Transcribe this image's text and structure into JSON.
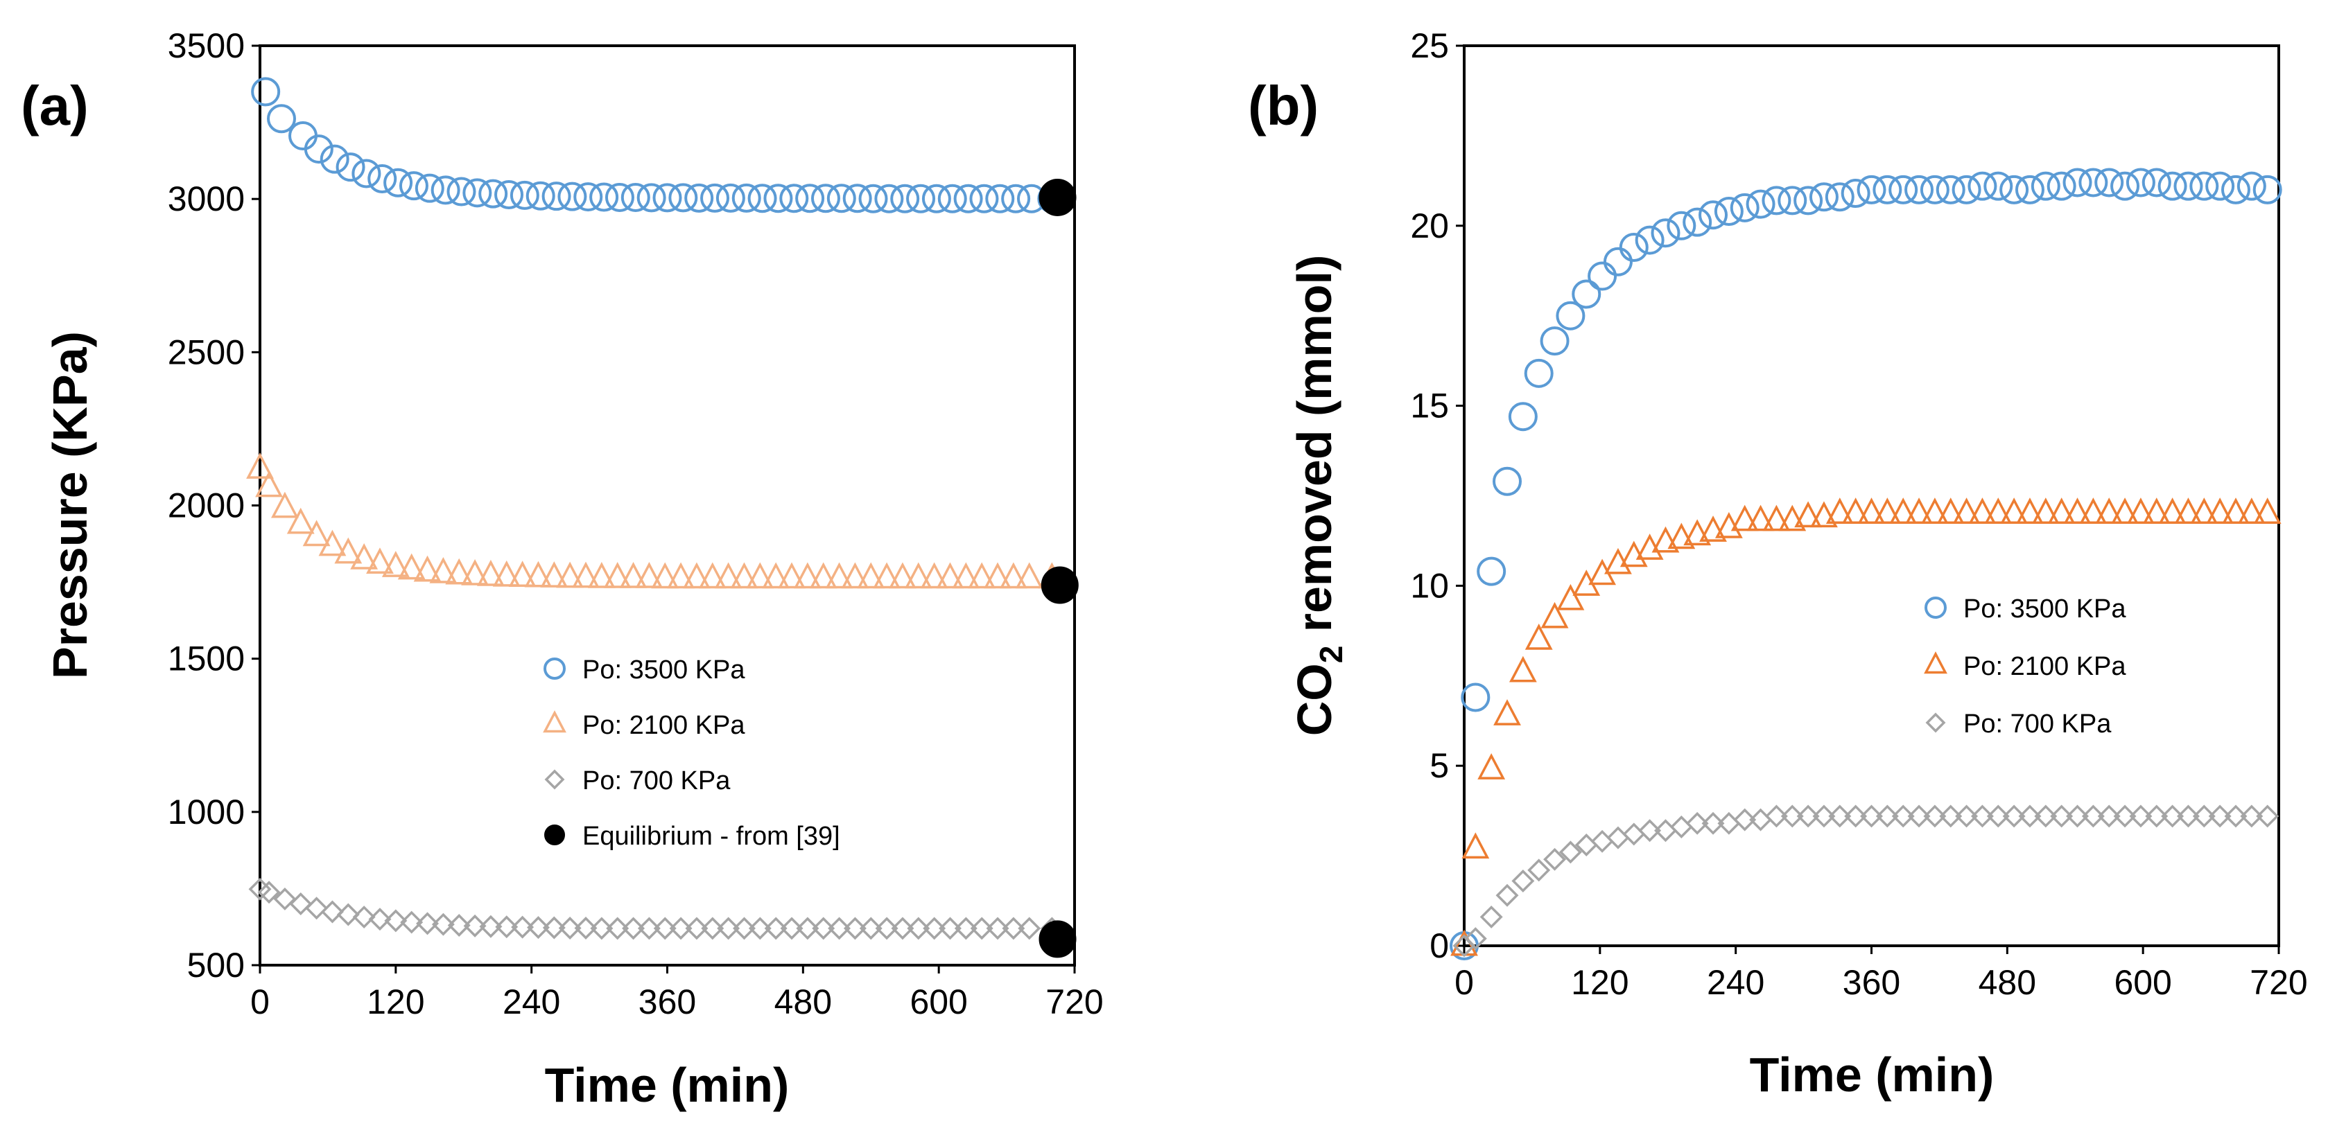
{
  "colors": {
    "po3500": "#5b9bd5",
    "po2100a": "#f4b183",
    "po2100b": "#ed7d31",
    "po700": "#a5a5a5",
    "equilibrium": "#000000"
  },
  "chart_data": [
    {
      "panel_label": "(a)",
      "type": "scatter",
      "xlabel": "Time (min)",
      "ylabel": "Pressure (KPa)",
      "xlim": [
        0,
        720
      ],
      "ylim": [
        500,
        3500
      ],
      "x_ticks": [
        "0",
        "120",
        "240",
        "360",
        "480",
        "600",
        "720"
      ],
      "y_ticks": [
        "500",
        "1000",
        "1500",
        "2000",
        "2500",
        "3000",
        "3500"
      ],
      "grid": false,
      "legend_position": "center",
      "legend": [
        "Po: 3500 KPa",
        "Po: 2100 KPa",
        "Po: 700 KPa",
        "Equilibrium - from [39]"
      ],
      "series": [
        {
          "name": "Po: 3500 KPa",
          "marker": "circle",
          "color_key": "po3500",
          "x": [
            5,
            19,
            38,
            52,
            66,
            80,
            94,
            108,
            122,
            136,
            150,
            164,
            178,
            192,
            206,
            220,
            234,
            248,
            262,
            276,
            290,
            304,
            318,
            332,
            346,
            360,
            374,
            388,
            402,
            416,
            430,
            444,
            458,
            472,
            486,
            500,
            514,
            528,
            542,
            556,
            570,
            584,
            598,
            612,
            626,
            640,
            654,
            668,
            682,
            700
          ],
          "y": [
            3350,
            3262,
            3206,
            3163,
            3130,
            3104,
            3083,
            3066,
            3053,
            3043,
            3035,
            3029,
            3024,
            3020,
            3017,
            3014,
            3012,
            3010,
            3009,
            3008,
            3007,
            3006,
            3005,
            3005,
            3004,
            3004,
            3004,
            3003,
            3003,
            3003,
            3003,
            3002,
            3002,
            3002,
            3002,
            3002,
            3002,
            3002,
            3001,
            3001,
            3001,
            3001,
            3001,
            3001,
            3001,
            3001,
            3001,
            3001,
            3001,
            3001
          ]
        },
        {
          "name": "Po: 2100 KPa",
          "marker": "triangle",
          "color_key": "po2100a",
          "x": [
            0,
            8,
            22,
            36,
            50,
            64,
            78,
            92,
            106,
            120,
            134,
            148,
            162,
            176,
            190,
            204,
            218,
            232,
            246,
            260,
            274,
            288,
            302,
            316,
            330,
            344,
            358,
            372,
            386,
            400,
            414,
            428,
            442,
            456,
            470,
            484,
            498,
            512,
            526,
            540,
            554,
            568,
            582,
            596,
            610,
            624,
            638,
            652,
            666,
            680,
            700
          ],
          "y": [
            2120,
            2060,
            1992,
            1940,
            1900,
            1868,
            1843,
            1824,
            1810,
            1799,
            1791,
            1784,
            1779,
            1775,
            1772,
            1770,
            1768,
            1767,
            1766,
            1765,
            1764,
            1764,
            1763,
            1763,
            1763,
            1763,
            1762,
            1762,
            1762,
            1762,
            1762,
            1762,
            1762,
            1762,
            1762,
            1762,
            1762,
            1762,
            1762,
            1762,
            1762,
            1762,
            1762,
            1762,
            1762,
            1762,
            1762,
            1762,
            1762,
            1762,
            1762
          ]
        },
        {
          "name": "Po: 700 KPa",
          "marker": "diamond",
          "color_key": "po700",
          "x": [
            0,
            8,
            22,
            36,
            50,
            64,
            78,
            92,
            106,
            120,
            134,
            148,
            162,
            176,
            190,
            204,
            218,
            232,
            246,
            260,
            274,
            288,
            302,
            316,
            330,
            344,
            358,
            372,
            386,
            400,
            414,
            428,
            442,
            456,
            470,
            484,
            498,
            512,
            526,
            540,
            554,
            568,
            582,
            596,
            610,
            624,
            638,
            652,
            666,
            680,
            700
          ],
          "y": [
            748,
            738,
            716,
            700,
            686,
            674,
            665,
            657,
            650,
            645,
            640,
            636,
            633,
            630,
            628,
            626,
            625,
            624,
            623,
            622,
            621,
            621,
            620,
            620,
            620,
            620,
            620,
            620,
            620,
            620,
            620,
            620,
            620,
            620,
            620,
            620,
            620,
            620,
            620,
            620,
            620,
            620,
            620,
            620,
            620,
            620,
            620,
            620,
            620,
            620,
            620
          ]
        },
        {
          "name": "Equilibrium - from [39]",
          "marker": "filled-circle",
          "color_key": "equilibrium",
          "x": [
            705,
            707,
            705
          ],
          "y": [
            3005,
            1740,
            585
          ]
        }
      ]
    },
    {
      "panel_label": "(b)",
      "type": "scatter",
      "xlabel": "Time (min)",
      "ylabel_prefix": "CO",
      "ylabel_subscript": "2",
      "ylabel_suffix": " removed (mmol)",
      "xlim": [
        0,
        720
      ],
      "ylim": [
        0,
        25
      ],
      "x_ticks": [
        "0",
        "120",
        "240",
        "360",
        "480",
        "600",
        "720"
      ],
      "y_ticks": [
        "0",
        "5",
        "10",
        "15",
        "20",
        "25"
      ],
      "grid": false,
      "legend_position": "center-right",
      "legend": [
        "Po: 3500 KPa",
        "Po: 2100 KPa",
        "Po: 700 KPa"
      ],
      "series": [
        {
          "name": "Po: 3500 KPa",
          "marker": "circle",
          "color_key": "po3500",
          "x": [
            0,
            10,
            24,
            38,
            52,
            66,
            80,
            94,
            108,
            122,
            136,
            150,
            164,
            178,
            192,
            206,
            220,
            234,
            248,
            262,
            276,
            290,
            304,
            318,
            332,
            346,
            360,
            374,
            388,
            402,
            416,
            430,
            444,
            458,
            472,
            486,
            500,
            514,
            528,
            542,
            556,
            570,
            584,
            598,
            612,
            626,
            640,
            654,
            668,
            682,
            696,
            710
          ],
          "y": [
            0,
            6.9,
            10.4,
            12.9,
            14.7,
            15.9,
            16.8,
            17.5,
            18.1,
            18.6,
            19.0,
            19.4,
            19.6,
            19.8,
            20.0,
            20.1,
            20.3,
            20.4,
            20.5,
            20.6,
            20.7,
            20.7,
            20.7,
            20.8,
            20.8,
            20.9,
            21.0,
            21.0,
            21.0,
            21.0,
            21.0,
            21.0,
            21.0,
            21.1,
            21.1,
            21.0,
            21.0,
            21.1,
            21.1,
            21.2,
            21.2,
            21.2,
            21.1,
            21.2,
            21.2,
            21.1,
            21.1,
            21.1,
            21.1,
            21.0,
            21.1,
            21.0
          ]
        },
        {
          "name": "Po: 2100 KPa",
          "marker": "triangle",
          "color_key": "po2100b",
          "x": [
            0,
            10,
            24,
            38,
            52,
            66,
            80,
            94,
            108,
            122,
            136,
            150,
            164,
            178,
            192,
            206,
            220,
            234,
            248,
            262,
            276,
            290,
            304,
            318,
            332,
            346,
            360,
            374,
            388,
            402,
            416,
            430,
            444,
            458,
            472,
            486,
            500,
            514,
            528,
            542,
            556,
            570,
            584,
            598,
            612,
            626,
            640,
            654,
            668,
            682,
            696,
            710
          ],
          "y": [
            0,
            2.7,
            4.9,
            6.4,
            7.6,
            8.5,
            9.1,
            9.6,
            10.0,
            10.3,
            10.6,
            10.8,
            11.0,
            11.2,
            11.3,
            11.4,
            11.5,
            11.6,
            11.8,
            11.8,
            11.8,
            11.8,
            11.9,
            11.9,
            12.0,
            12.0,
            12.0,
            12.0,
            12.0,
            12.0,
            12.0,
            12.0,
            12.0,
            12.0,
            12.0,
            12.0,
            12.0,
            12.0,
            12.0,
            12.0,
            12.0,
            12.0,
            12.0,
            12.0,
            12.0,
            12.0,
            12.0,
            12.0,
            12.0,
            12.0,
            12.0,
            12.0
          ]
        },
        {
          "name": "Po: 700 KPa",
          "marker": "diamond",
          "color_key": "po700",
          "x": [
            0,
            10,
            24,
            38,
            52,
            66,
            80,
            94,
            108,
            122,
            136,
            150,
            164,
            178,
            192,
            206,
            220,
            234,
            248,
            262,
            276,
            290,
            304,
            318,
            332,
            346,
            360,
            374,
            388,
            402,
            416,
            430,
            444,
            458,
            472,
            486,
            500,
            514,
            528,
            542,
            556,
            570,
            584,
            598,
            612,
            626,
            640,
            654,
            668,
            682,
            696,
            710
          ],
          "y": [
            0,
            0.2,
            0.8,
            1.4,
            1.8,
            2.1,
            2.4,
            2.6,
            2.8,
            2.9,
            3.0,
            3.1,
            3.2,
            3.2,
            3.3,
            3.4,
            3.4,
            3.4,
            3.5,
            3.5,
            3.6,
            3.6,
            3.6,
            3.6,
            3.6,
            3.6,
            3.6,
            3.6,
            3.6,
            3.6,
            3.6,
            3.6,
            3.6,
            3.6,
            3.6,
            3.6,
            3.6,
            3.6,
            3.6,
            3.6,
            3.6,
            3.6,
            3.6,
            3.6,
            3.6,
            3.6,
            3.6,
            3.6,
            3.6,
            3.6,
            3.6,
            3.6
          ]
        }
      ]
    }
  ]
}
